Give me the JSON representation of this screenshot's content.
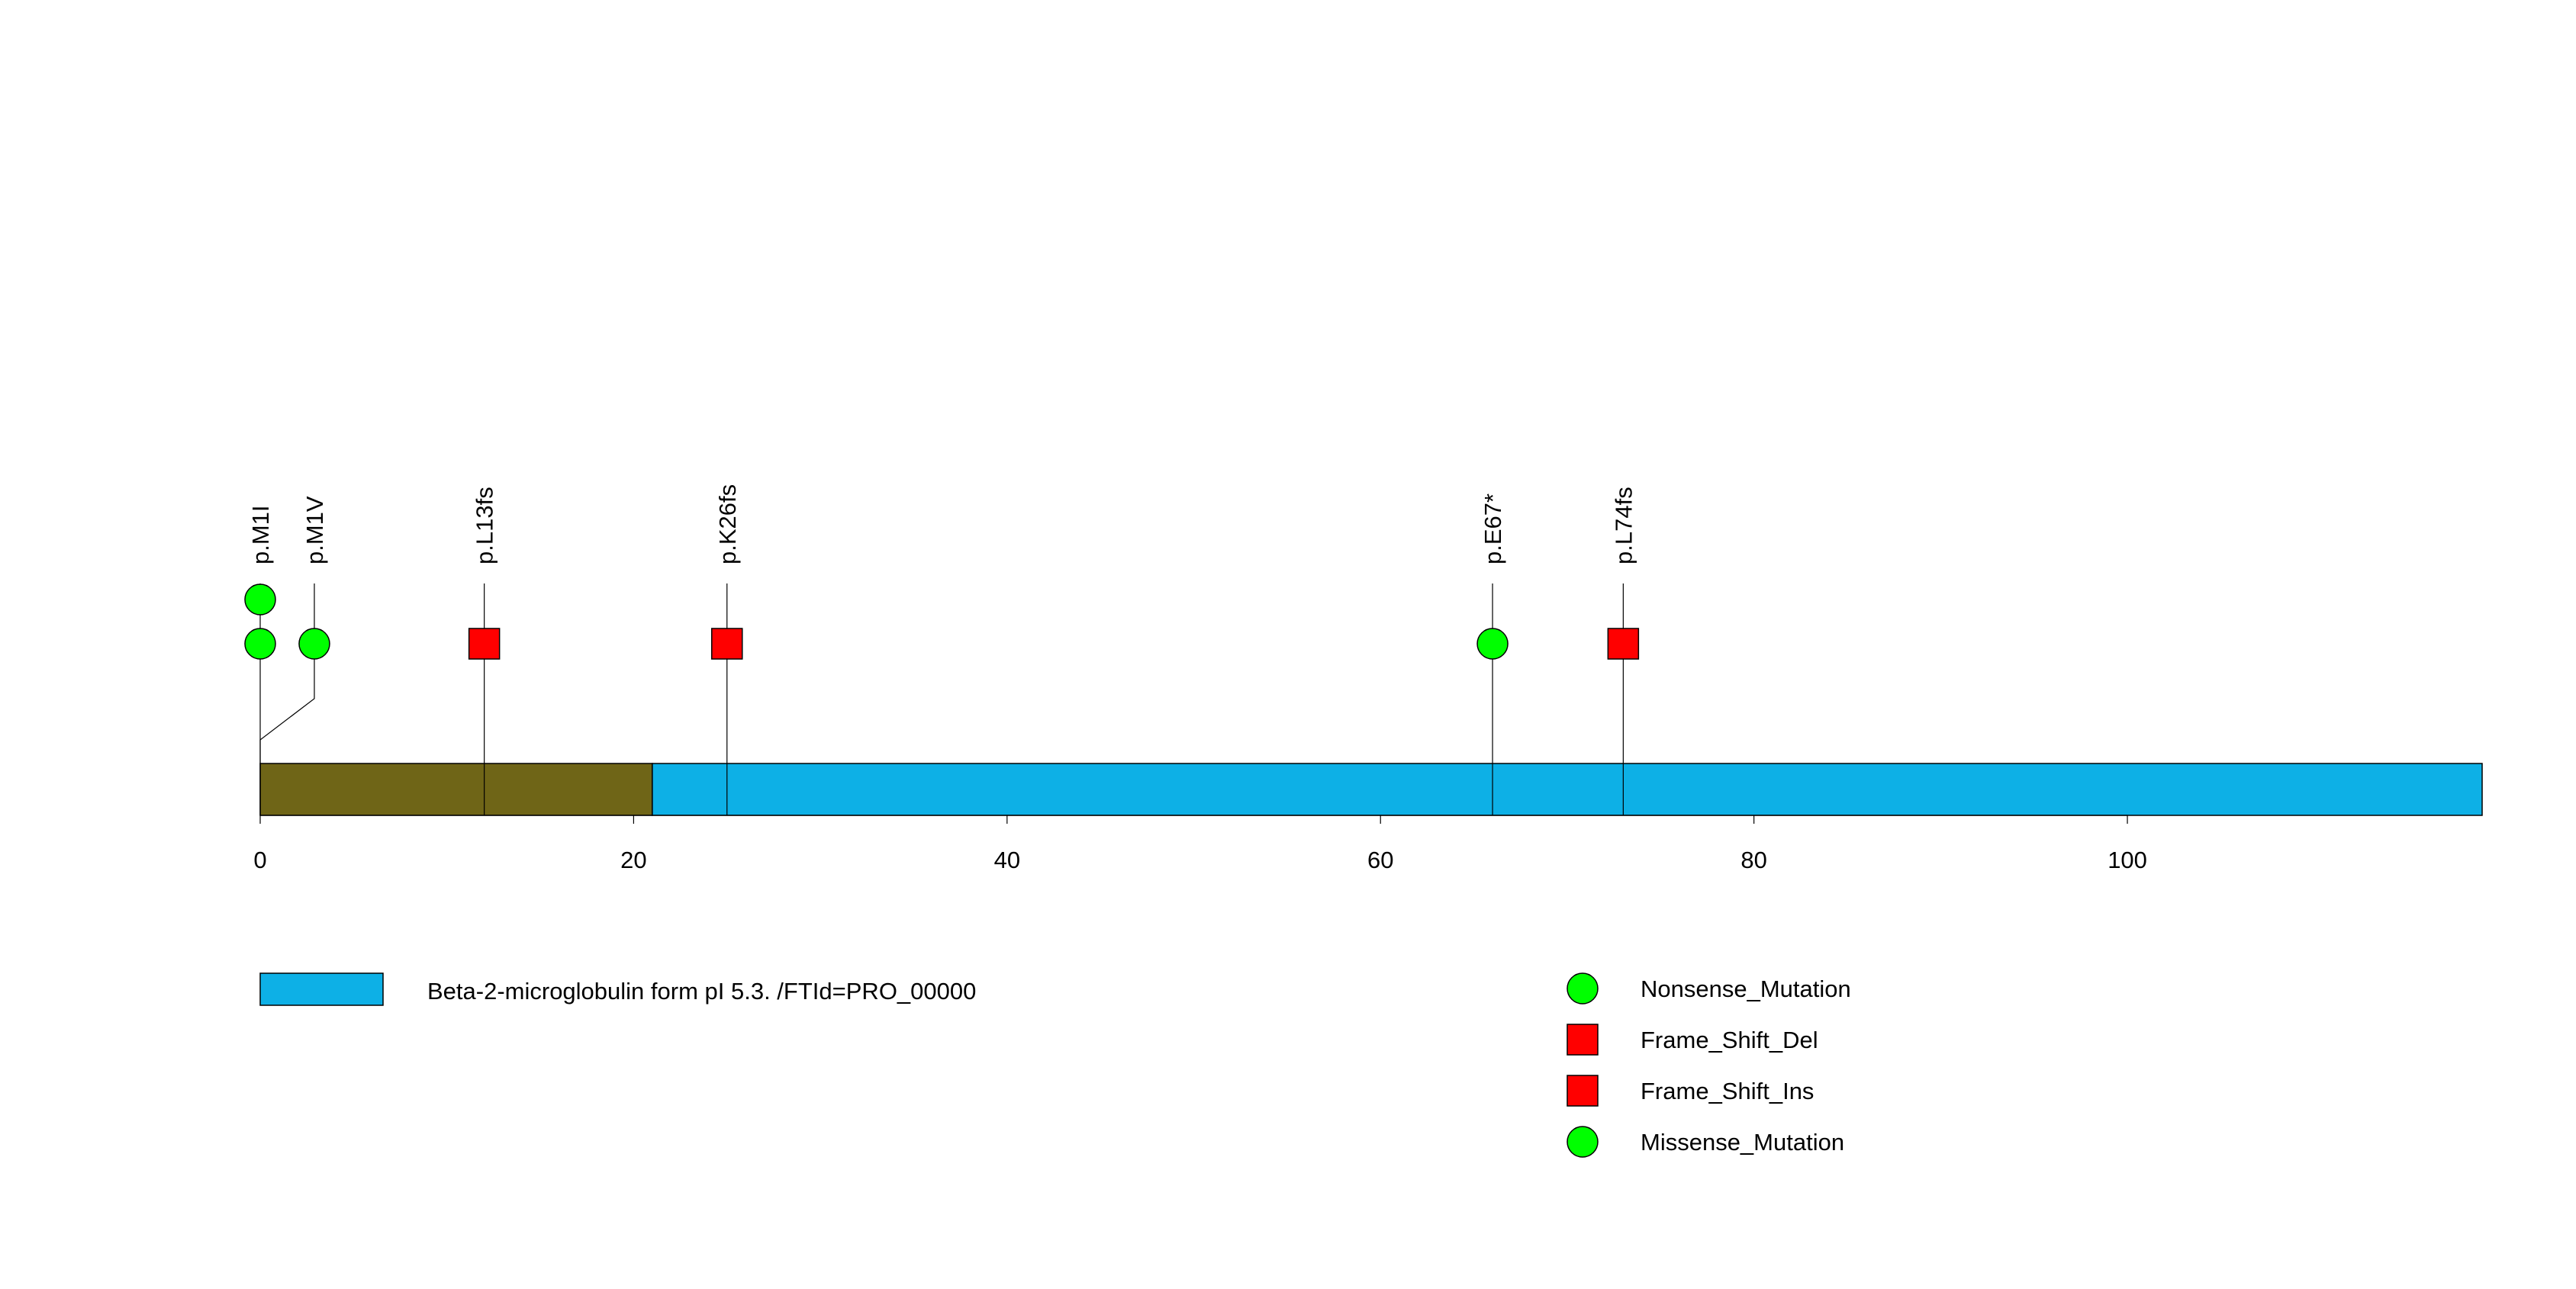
{
  "chart_data": {
    "type": "lollipop",
    "protein_length": 119,
    "xlim": [
      0,
      119
    ],
    "ticks": [
      0,
      20,
      40,
      60,
      80,
      100
    ],
    "tick_labels": [
      "0",
      "20",
      "40",
      "60",
      "80",
      "100"
    ],
    "domains": [
      {
        "start": 0,
        "end": 21,
        "color": "#6f6517",
        "label": ""
      },
      {
        "start": 21,
        "end": 119,
        "color": "#0db0e6",
        "label": "Beta-2-microglobulin form pI 5.3. /FTId=PRO_00000"
      }
    ],
    "mutations": [
      {
        "label": "p.M1I",
        "position": 0,
        "label_position": 0,
        "markers": [
          {
            "type": "Nonsense_Mutation",
            "shape": "circle",
            "color": "#00ff00"
          },
          {
            "type": "Missense_Mutation",
            "shape": "circle",
            "color": "#00ff00"
          }
        ]
      },
      {
        "label": "p.M1V",
        "position": 0,
        "label_position": 2.9,
        "markers": [
          {
            "type": "Missense_Mutation",
            "shape": "circle",
            "color": "#00ff00"
          }
        ]
      },
      {
        "label": "p.L13fs",
        "position": 12,
        "label_position": 12,
        "markers": [
          {
            "type": "Frame_Shift_Del",
            "shape": "square",
            "color": "#ff0000"
          }
        ]
      },
      {
        "label": "p.K26fs",
        "position": 25,
        "label_position": 25,
        "markers": [
          {
            "type": "Frame_Shift_Del",
            "shape": "square",
            "color": "#ff0000"
          }
        ]
      },
      {
        "label": "p.E67*",
        "position": 66,
        "label_position": 66,
        "markers": [
          {
            "type": "Nonsense_Mutation",
            "shape": "circle",
            "color": "#00ff00"
          }
        ]
      },
      {
        "label": "p.L74fs",
        "position": 73,
        "label_position": 73,
        "markers": [
          {
            "type": "Frame_Shift_Ins",
            "shape": "square",
            "color": "#ff0000"
          }
        ]
      }
    ],
    "legend": {
      "domains": [
        {
          "label": "Beta-2-microglobulin form pI 5.3. /FTId=PRO_00000",
          "color": "#0db0e6"
        }
      ],
      "mutation_types": [
        {
          "label": "Nonsense_Mutation",
          "shape": "circle",
          "color": "#00ff00"
        },
        {
          "label": "Frame_Shift_Del",
          "shape": "square",
          "color": "#ff0000"
        },
        {
          "label": "Frame_Shift_Ins",
          "shape": "square",
          "color": "#ff0000"
        },
        {
          "label": "Missense_Mutation",
          "shape": "circle",
          "color": "#00ff00"
        }
      ]
    }
  }
}
